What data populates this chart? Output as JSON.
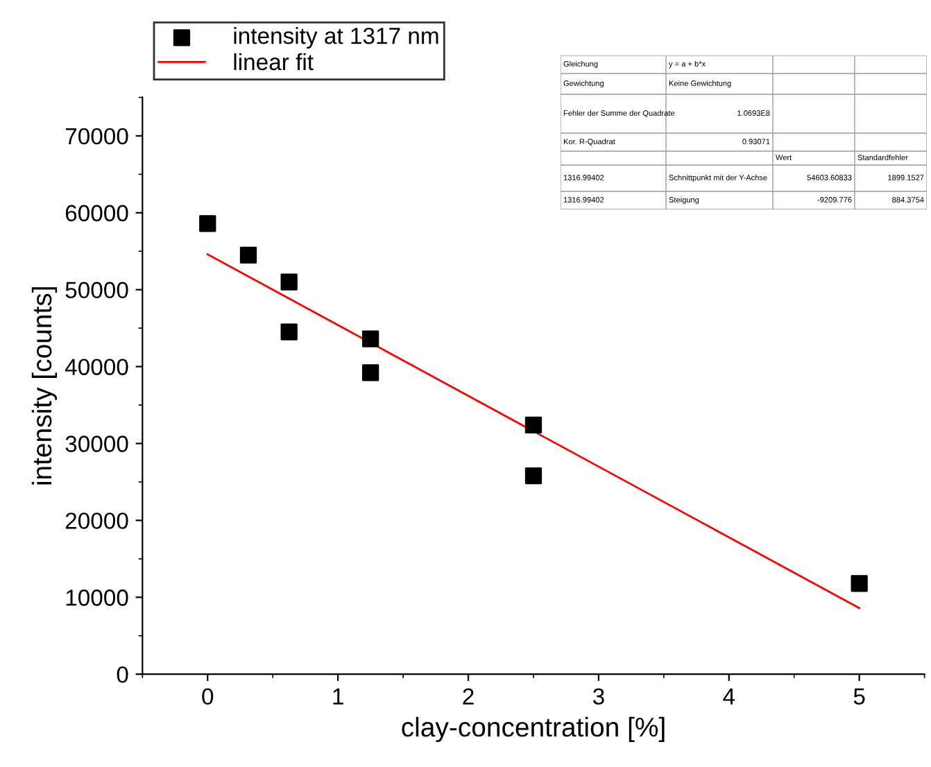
{
  "chart_data": {
    "type": "scatter",
    "xlabel": "clay-concentration [%]",
    "ylabel": "intensity [counts]",
    "x": [
      0,
      0.3125,
      0.625,
      0.625,
      1.25,
      1.25,
      2.5,
      2.5,
      5
    ],
    "series": [
      {
        "name": "intensity at 1317 nm",
        "color": "#000000",
        "marker": "square",
        "values": [
          58600,
          54500,
          51000,
          44500,
          43600,
          39200,
          32400,
          25800,
          11800
        ]
      },
      {
        "name": "linear fit",
        "type": "line",
        "color": "#ff0000",
        "line_style": "solid",
        "x": [
          0,
          5
        ],
        "values": [
          54600,
          8600
        ]
      }
    ],
    "xlim": [
      -0.5,
      5.5
    ],
    "xticks": [
      0,
      1,
      2,
      3,
      4,
      5
    ],
    "ylim": [
      0,
      75000
    ],
    "yticks": [
      0,
      10000,
      20000,
      30000,
      40000,
      50000,
      60000,
      70000
    ],
    "grid": false,
    "legend": "top left",
    "annotations": [
      "Gleichung",
      "y = a + b*x",
      "Gewichtung",
      "Keine Gewichtung",
      "Fehler der Summe der Quadrate",
      "1.0693E8",
      "Kor. R-Quadrat",
      "0.93071",
      "Wert",
      "Standardfehler",
      "1316.99402",
      "Schnittpunkt mit der Y-Achse",
      "54603.60833",
      "1899.1527",
      "1316.99402",
      "Steigung",
      "-9209.776",
      "884.3754"
    ]
  }
}
